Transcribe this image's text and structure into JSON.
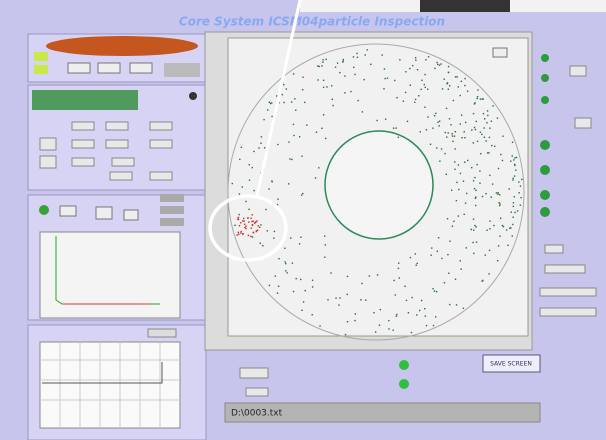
{
  "header": {
    "title": "Core System ICSM04particle Inspection"
  },
  "file_path": "D:\\0003.txt",
  "save_button": "SAVE SCREEN"
}
